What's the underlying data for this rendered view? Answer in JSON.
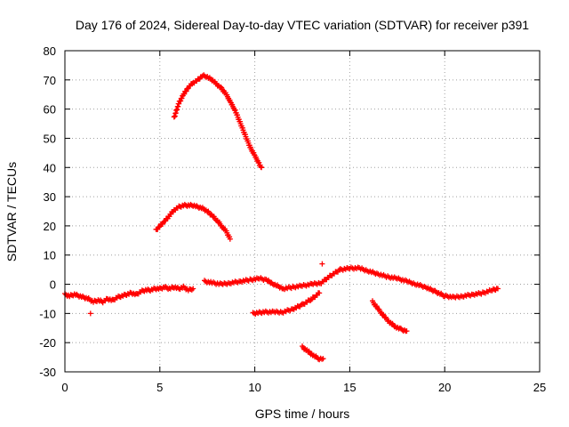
{
  "chart_data": {
    "type": "scatter",
    "title": "Day 176 of 2024, Sidereal Day-to-day VTEC variation (SDTVAR) for receiver p391",
    "xlabel": "GPS time / hours",
    "ylabel": "SDTVAR / TECUs",
    "xlim": [
      0,
      25
    ],
    "ylim": [
      -30,
      80
    ],
    "xticks": [
      0,
      5,
      10,
      15,
      20,
      25
    ],
    "yticks": [
      -30,
      -20,
      -10,
      0,
      10,
      20,
      30,
      40,
      50,
      60,
      70,
      80
    ],
    "grid": true,
    "marker": "+",
    "color": "#ff0000",
    "series": [
      {
        "name": "arc-high",
        "x": [
          5.75,
          6.0,
          6.25,
          6.5,
          6.75,
          7.0,
          7.25,
          7.5,
          7.75,
          8.0,
          8.25,
          8.5,
          8.75,
          9.0,
          9.25,
          9.5,
          9.75,
          10.0,
          10.25,
          10.35
        ],
        "y": [
          57,
          62,
          65,
          67.5,
          69,
          70,
          71.5,
          71,
          70,
          68.5,
          67,
          65,
          62,
          59,
          55,
          51,
          47,
          44,
          41,
          40
        ]
      },
      {
        "name": "arc-mid",
        "x": [
          4.8,
          5.0,
          5.25,
          5.5,
          5.75,
          6.0,
          6.25,
          6.5,
          6.75,
          7.0,
          7.25,
          7.5,
          7.75,
          8.0,
          8.25,
          8.5,
          8.7
        ],
        "y": [
          18.5,
          20,
          21.5,
          23.5,
          25.5,
          26.5,
          27,
          27,
          27,
          26.5,
          26,
          25,
          23.5,
          22,
          20,
          18,
          15.5
        ]
      },
      {
        "name": "baseline-a",
        "x": [
          0.0,
          0.25,
          0.5,
          0.75,
          1.0,
          1.25,
          1.5,
          1.75,
          2.0,
          2.25,
          2.5,
          2.75,
          3.0,
          3.25,
          3.5,
          3.75,
          4.0,
          4.25,
          4.5,
          4.75,
          5.0,
          5.25,
          5.5,
          5.75,
          6.0,
          6.25,
          6.5,
          6.75
        ],
        "y": [
          -3.5,
          -4,
          -3.5,
          -4,
          -4.5,
          -5,
          -6,
          -5.5,
          -6,
          -5,
          -5.5,
          -4.5,
          -4,
          -3.5,
          -3,
          -3.5,
          -2.5,
          -2,
          -2,
          -1.5,
          -1.5,
          -1,
          -1.5,
          -1,
          -1.5,
          -1,
          -2,
          -1.5
        ]
      },
      {
        "name": "outlier-a",
        "x": [
          1.35
        ],
        "y": [
          -10
        ]
      },
      {
        "name": "baseline-b",
        "x": [
          7.35,
          7.75,
          8.25,
          8.75,
          9.25,
          9.75,
          10.25,
          10.6,
          11.0,
          11.5,
          12.0,
          12.5,
          13.0,
          13.5,
          14.0,
          14.5,
          15.0,
          15.5,
          16.0,
          16.5,
          17.0,
          17.5,
          18.0,
          18.5,
          19.0,
          19.5,
          20.0,
          20.5,
          21.0,
          21.5,
          22.0,
          22.5,
          22.8
        ],
        "y": [
          1,
          0.5,
          0,
          0.5,
          1,
          1.5,
          2,
          1.5,
          0,
          -1.5,
          -1,
          -0.5,
          0,
          0.5,
          3,
          5,
          5.5,
          5.5,
          4.5,
          3.5,
          2.5,
          2,
          1,
          0,
          -1,
          -2.5,
          -4,
          -4.5,
          -4,
          -3.5,
          -3,
          -2,
          -1.5
        ]
      },
      {
        "name": "descending-a",
        "x": [
          9.9,
          10.5,
          11.0,
          11.5,
          12.0,
          12.5,
          13.0,
          13.4
        ],
        "y": [
          -10,
          -9.5,
          -9.5,
          -9.5,
          -8.5,
          -7,
          -5,
          -3
        ]
      },
      {
        "name": "descending-b",
        "x": [
          16.2,
          16.5,
          16.8,
          17.1,
          17.4,
          17.7,
          18.0
        ],
        "y": [
          -6,
          -8.5,
          -11,
          -13,
          -14.5,
          -15.5,
          -16
        ]
      },
      {
        "name": "descending-c",
        "x": [
          12.5,
          12.8,
          13.1,
          13.4,
          13.6
        ],
        "y": [
          -21.5,
          -23,
          -24.5,
          -25.5,
          -25.5
        ]
      },
      {
        "name": "outlier-b",
        "x": [
          13.55
        ],
        "y": [
          7
        ]
      }
    ]
  }
}
